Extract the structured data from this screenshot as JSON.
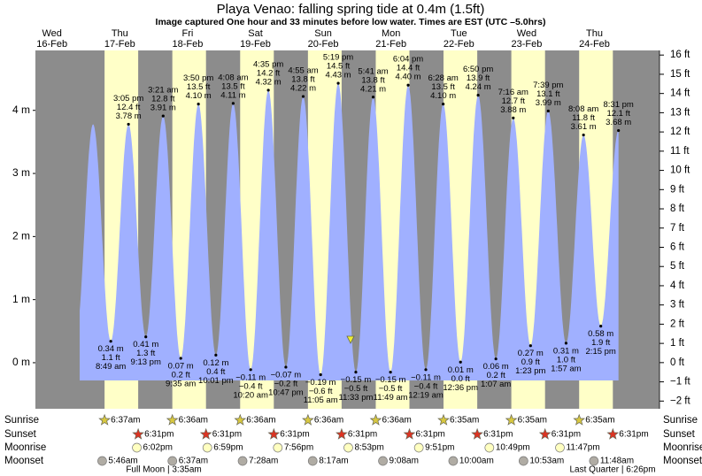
{
  "chart_data": {
    "type": "tide",
    "title": "Playa Venao: falling  spring tide at 0.4m (1.5ft)",
    "subtitle": "Image captured One hour and 33 minutes before low water. Times are EST (UTC –5.0hrs)",
    "ylim": [
      -0.73,
      4.95
    ],
    "yticks": [
      {
        "value": 0,
        "label": "0 m"
      },
      {
        "value": 1,
        "label": "1 m"
      },
      {
        "value": 2,
        "label": "2 m"
      },
      {
        "value": 3,
        "label": "3 m"
      },
      {
        "value": 4,
        "label": "4 m"
      }
    ],
    "y2lim": [
      -2.4,
      16.24
    ],
    "y2ticks": [
      {
        "value": -2,
        "label": "−2 ft"
      },
      {
        "value": -1,
        "label": "−1 ft"
      },
      {
        "value": 0,
        "label": "0 ft"
      },
      {
        "value": 1,
        "label": "1 ft"
      },
      {
        "value": 2,
        "label": "2 ft"
      },
      {
        "value": 3,
        "label": "3 ft"
      },
      {
        "value": 4,
        "label": "4 ft"
      },
      {
        "value": 5,
        "label": "5 ft"
      },
      {
        "value": 6,
        "label": "6 ft"
      },
      {
        "value": 7,
        "label": "7 ft"
      },
      {
        "value": 8,
        "label": "8 ft"
      },
      {
        "value": 9,
        "label": "9 ft"
      },
      {
        "value": 10,
        "label": "10 ft"
      },
      {
        "value": 11,
        "label": "11 ft"
      },
      {
        "value": 12,
        "label": "12 ft"
      },
      {
        "value": 13,
        "label": "13 ft"
      },
      {
        "value": 14,
        "label": "14 ft"
      },
      {
        "value": 15,
        "label": "15 ft"
      },
      {
        "value": 16,
        "label": "16 ft"
      }
    ],
    "colors": {
      "night": "#8c8c8c",
      "day": "#ffffc8",
      "water": "#a0b0ff"
    },
    "row_labels": {
      "sunrise": "Sunrise",
      "sunset": "Sunset",
      "moonrise": "Moonrise",
      "moonset": "Moonset"
    },
    "days": [
      {
        "weekday": "Wed",
        "date": "16-Feb",
        "tides": []
      },
      {
        "weekday": "Thu",
        "date": "17-Feb",
        "sunrise": "6:37am",
        "sunset": "6:31pm",
        "moonrise": "6:02pm",
        "moonset": "5:46am",
        "tides": [
          {
            "time": "8:49 am",
            "height": 0.34,
            "height_label": "0.34 m",
            "ft": "1.1 ft"
          },
          {
            "time": "3:05 pm",
            "height": 3.78,
            "height_label": "3.78 m",
            "ft": "12.4 ft"
          },
          {
            "time": "9:13 pm",
            "height": 0.41,
            "height_label": "0.41 m",
            "ft": "1.3 ft"
          }
        ]
      },
      {
        "weekday": "Fri",
        "date": "18-Feb",
        "sunrise": "6:36am",
        "sunset": "6:31pm",
        "moonrise": "6:59pm",
        "moonset": "6:37am",
        "moon_phase": "Full Moon | 3:35am",
        "tides": [
          {
            "time": "3:21 am",
            "height": 3.91,
            "height_label": "3.91 m",
            "ft": "12.8 ft"
          },
          {
            "time": "9:35 am",
            "height": 0.07,
            "height_label": "0.07 m",
            "ft": "0.2 ft"
          },
          {
            "time": "3:50 pm",
            "height": 4.1,
            "height_label": "4.10 m",
            "ft": "13.5 ft"
          },
          {
            "time": "10:01 pm",
            "height": 0.12,
            "height_label": "0.12 m",
            "ft": "0.4 ft"
          }
        ]
      },
      {
        "weekday": "Sat",
        "date": "19-Feb",
        "sunrise": "6:36am",
        "sunset": "6:31pm",
        "moonrise": "7:56pm",
        "moonset": "7:28am",
        "tides": [
          {
            "time": "4:08 am",
            "height": 4.11,
            "height_label": "4.11 m",
            "ft": "13.5 ft"
          },
          {
            "time": "10:20 am",
            "height": -0.11,
            "height_label": "−0.11 m",
            "ft": "−0.4 ft"
          },
          {
            "time": "4:35 pm",
            "height": 4.32,
            "height_label": "4.32 m",
            "ft": "14.2 ft"
          },
          {
            "time": "10:47 pm",
            "height": -0.07,
            "height_label": "−0.07 m",
            "ft": "−0.2 ft"
          }
        ]
      },
      {
        "weekday": "Sun",
        "date": "20-Feb",
        "sunrise": "6:36am",
        "sunset": "6:31pm",
        "moonrise": "8:53pm",
        "moonset": "8:17am",
        "tides": [
          {
            "time": "4:55 am",
            "height": 4.22,
            "height_label": "4.22 m",
            "ft": "13.8 ft"
          },
          {
            "time": "11:05 am",
            "height": -0.19,
            "height_label": "−0.19 m",
            "ft": "−0.6 ft"
          },
          {
            "time": "5:19 pm",
            "height": 4.43,
            "height_label": "4.43 m",
            "ft": "14.5 ft"
          },
          {
            "time": "11:33 pm",
            "height": -0.15,
            "height_label": "−0.15 m",
            "ft": "−0.5 ft"
          }
        ]
      },
      {
        "weekday": "Mon",
        "date": "21-Feb",
        "sunrise": "6:36am",
        "sunset": "6:31pm",
        "moonrise": "9:51pm",
        "moonset": "9:08am",
        "tides": [
          {
            "time": "5:41 am",
            "height": 4.21,
            "height_label": "4.21 m",
            "ft": "13.8 ft"
          },
          {
            "time": "11:49 am",
            "height": -0.15,
            "height_label": "−0.15 m",
            "ft": "−0.5 ft"
          },
          {
            "time": "6:04 pm",
            "height": 4.4,
            "height_label": "4.40 m",
            "ft": "14.4 ft"
          }
        ]
      },
      {
        "weekday": "Tue",
        "date": "22-Feb",
        "sunrise": "6:35am",
        "sunset": "6:31pm",
        "moonrise": "10:49pm",
        "moonset": "10:00am",
        "tides": [
          {
            "time": "12:19 am",
            "height": -0.11,
            "height_label": "−0.11 m",
            "ft": "−0.4 ft"
          },
          {
            "time": "6:28 am",
            "height": 4.1,
            "height_label": "4.10 m",
            "ft": "13.5 ft"
          },
          {
            "time": "12:36 pm",
            "height": 0.01,
            "height_label": "0.01 m",
            "ft": "0.0 ft"
          },
          {
            "time": "6:50 pm",
            "height": 4.24,
            "height_label": "4.24 m",
            "ft": "13.9 ft"
          }
        ]
      },
      {
        "weekday": "Wed",
        "date": "23-Feb",
        "sunrise": "6:35am",
        "sunset": "6:31pm",
        "moonrise": "11:47pm",
        "moonset": "10:53am",
        "tides": [
          {
            "time": "1:07 am",
            "height": 0.06,
            "height_label": "0.06 m",
            "ft": "0.2 ft"
          },
          {
            "time": "7:16 am",
            "height": 3.88,
            "height_label": "3.88 m",
            "ft": "12.7 ft"
          },
          {
            "time": "1:23 pm",
            "height": 0.27,
            "height_label": "0.27 m",
            "ft": "0.9 ft"
          },
          {
            "time": "7:39 pm",
            "height": 3.99,
            "height_label": "3.99 m",
            "ft": "13.1 ft"
          }
        ]
      },
      {
        "weekday": "Thu",
        "date": "24-Feb",
        "sunrise": "6:35am",
        "sunset": "6:31pm",
        "moonset": "11:48am",
        "moon_phase": "Last Quarter | 6:26pm",
        "tides": [
          {
            "time": "1:57 am",
            "height": 0.31,
            "height_label": "0.31 m",
            "ft": "1.0 ft"
          },
          {
            "time": "8:08 am",
            "height": 3.61,
            "height_label": "3.61 m",
            "ft": "11.8 ft"
          },
          {
            "time": "2:15 pm",
            "height": 0.58,
            "height_label": "0.58 m",
            "ft": "1.9 ft"
          },
          {
            "time": "8:31 pm",
            "height": 3.68,
            "height_label": "3.68 m",
            "ft": "12.1 ft"
          }
        ]
      }
    ]
  }
}
